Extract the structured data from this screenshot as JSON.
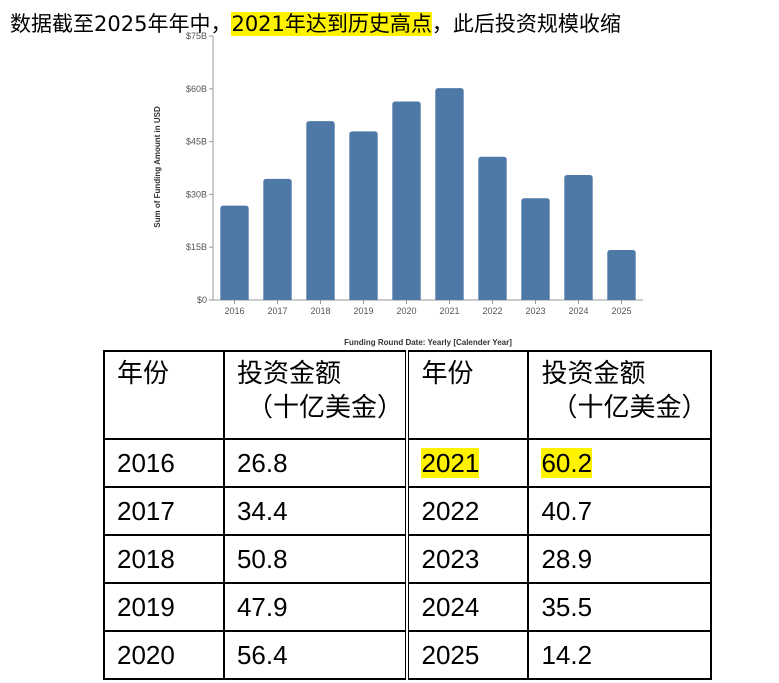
{
  "headline": {
    "prefix": "数据截至2025年年中，",
    "highlight": "2021年达到历史高点",
    "suffix": "，此后投资规模收缩"
  },
  "colors": {
    "bar": "#4e79a7",
    "highlight": "#fff200"
  },
  "chart_data": {
    "type": "bar",
    "categories": [
      "2016",
      "2017",
      "2018",
      "2019",
      "2020",
      "2021",
      "2022",
      "2023",
      "2024",
      "2025"
    ],
    "values": [
      26.8,
      34.4,
      50.8,
      47.9,
      56.4,
      60.2,
      40.7,
      28.9,
      35.5,
      14.2
    ],
    "ylabel": "Sum of Funding Amount in USD",
    "xlabel": "Funding Round Date: Yearly [Calender Year]",
    "ylim": [
      0,
      75
    ],
    "yticks": [
      "$0",
      "$15B",
      "$30B",
      "$45B",
      "$60B",
      "$75B"
    ],
    "ytick_values": [
      0,
      15,
      30,
      45,
      60,
      75
    ],
    "grid": false
  },
  "table": {
    "headers": {
      "year": "年份",
      "amount_line1": "投资金额",
      "amount_line2": "（十亿美金）"
    },
    "rows": [
      [
        "2016",
        "26.8",
        "2021",
        "60.2"
      ],
      [
        "2017",
        "34.4",
        "2022",
        "40.7"
      ],
      [
        "2018",
        "50.8",
        "2023",
        "28.9"
      ],
      [
        "2019",
        "47.9",
        "2024",
        "35.5"
      ],
      [
        "2020",
        "56.4",
        "2025",
        "14.2"
      ]
    ]
  }
}
